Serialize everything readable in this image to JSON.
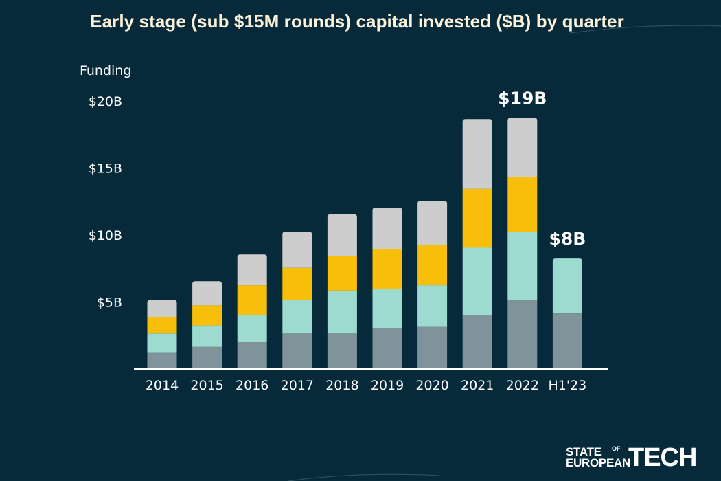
{
  "chart_data": {
    "type": "bar",
    "stacked": true,
    "title": "Early stage (sub $15M rounds) capital invested ($B) by quarter",
    "ylabel": "Funding",
    "ylim": [
      0,
      20
    ],
    "y_ticks": [
      {
        "value": 5,
        "label": "$5B"
      },
      {
        "value": 10,
        "label": "$10B"
      },
      {
        "value": 15,
        "label": "$15B"
      },
      {
        "value": 20,
        "label": "$20B"
      }
    ],
    "grid": false,
    "categories": [
      "2014",
      "2015",
      "2016",
      "2017",
      "2018",
      "2019",
      "2020",
      "2021",
      "2022",
      "H1'23"
    ],
    "series": [
      {
        "color": "#7e949a",
        "values": [
          1.2,
          1.6,
          2.0,
          2.6,
          2.6,
          3.0,
          3.1,
          4.0,
          5.1,
          4.1
        ]
      },
      {
        "color": "#9ddbd0",
        "values": [
          1.4,
          1.6,
          2.0,
          2.5,
          3.2,
          2.9,
          3.1,
          5.0,
          5.1,
          4.1
        ]
      },
      {
        "color": "#f8bf0a",
        "values": [
          1.2,
          1.5,
          2.2,
          2.4,
          2.6,
          3.0,
          3.0,
          4.4,
          4.1,
          0
        ]
      },
      {
        "color": "#cdcdcd",
        "values": [
          1.3,
          1.8,
          2.3,
          2.7,
          3.1,
          3.1,
          3.3,
          5.2,
          4.4,
          0
        ]
      }
    ],
    "annotations": [
      {
        "category": "2022",
        "label": "$19B"
      },
      {
        "category": "H1'23",
        "label": "$8B"
      }
    ]
  },
  "branding": {
    "logo_line1": "STATE",
    "logo_of": "OF",
    "logo_line2": "EUROPEAN",
    "logo_big": "TECH"
  },
  "colors": {
    "background": "#062a3a",
    "title": "#fbf2d9",
    "axis_text": "#ffffff"
  }
}
